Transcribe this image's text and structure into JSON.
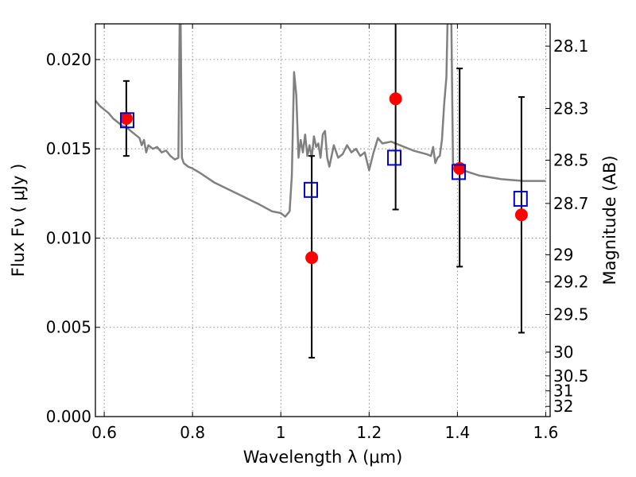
{
  "chart_data": {
    "type": "scatter",
    "xlabel": "Wavelength  λ (μm)",
    "ylabel": "Flux  Fν  ( μJy )",
    "y2label": "Magnitude (AB)",
    "xlim": [
      0.58,
      1.61
    ],
    "ylim": [
      0.0,
      0.022
    ],
    "grid": true,
    "x_ticks": [
      0.6,
      0.8,
      1.0,
      1.2,
      1.4,
      1.6
    ],
    "x_tick_labels": [
      "0.6",
      "0.8",
      "1",
      "1.2",
      "1.4",
      "1.6"
    ],
    "y_ticks": [
      0.0,
      0.005,
      0.01,
      0.015,
      0.02
    ],
    "y_tick_labels": [
      "0.000",
      "0.005",
      "0.010",
      "0.015",
      "0.020"
    ],
    "mag_ticks": [
      {
        "label": "28.1",
        "flux": 0.02075
      },
      {
        "label": "28.3",
        "flux": 0.01726
      },
      {
        "label": "28.5",
        "flux": 0.01436
      },
      {
        "label": "28.7",
        "flux": 0.01194
      },
      {
        "label": "29",
        "flux": 0.00906
      },
      {
        "label": "29.2",
        "flux": 0.00754
      },
      {
        "label": "29.5",
        "flux": 0.00572
      },
      {
        "label": "30",
        "flux": 0.00361
      },
      {
        "label": "30.5",
        "flux": 0.00228
      },
      {
        "label": "31",
        "flux": 0.00144
      },
      {
        "label": "32",
        "flux": 0.00057
      }
    ],
    "series": [
      {
        "type": "line",
        "color": "#808080",
        "x": [
          0.58,
          0.59,
          0.6,
          0.61,
          0.62,
          0.63,
          0.64,
          0.65,
          0.66,
          0.67,
          0.68,
          0.685,
          0.69,
          0.695,
          0.7,
          0.71,
          0.72,
          0.73,
          0.74,
          0.75,
          0.76,
          0.768,
          0.772,
          0.776,
          0.78,
          0.79,
          0.8,
          0.82,
          0.85,
          0.9,
          0.95,
          0.98,
          1.0,
          1.01,
          1.02,
          1.025,
          1.03,
          1.035,
          1.04,
          1.045,
          1.05,
          1.055,
          1.06,
          1.065,
          1.07,
          1.075,
          1.08,
          1.085,
          1.09,
          1.095,
          1.1,
          1.105,
          1.11,
          1.12,
          1.13,
          1.14,
          1.15,
          1.16,
          1.17,
          1.18,
          1.19,
          1.2,
          1.21,
          1.22,
          1.23,
          1.25,
          1.27,
          1.3,
          1.33,
          1.34,
          1.345,
          1.35,
          1.355,
          1.36,
          1.365,
          1.37,
          1.375,
          1.38,
          1.385,
          1.39,
          1.4,
          1.45,
          1.5,
          1.55,
          1.6
        ],
        "y": [
          0.0177,
          0.0174,
          0.0172,
          0.017,
          0.0167,
          0.0165,
          0.0163,
          0.0162,
          0.016,
          0.0158,
          0.0156,
          0.0152,
          0.0155,
          0.0148,
          0.0152,
          0.015,
          0.0151,
          0.0148,
          0.0149,
          0.0146,
          0.0144,
          0.0145,
          0.025,
          0.0145,
          0.0142,
          0.014,
          0.0139,
          0.0136,
          0.0131,
          0.0125,
          0.0119,
          0.0115,
          0.0114,
          0.0112,
          0.0115,
          0.0135,
          0.0193,
          0.018,
          0.0145,
          0.0155,
          0.0148,
          0.0158,
          0.0146,
          0.0152,
          0.0145,
          0.0157,
          0.0151,
          0.0153,
          0.0145,
          0.0158,
          0.016,
          0.0145,
          0.014,
          0.0152,
          0.0145,
          0.0147,
          0.0152,
          0.0148,
          0.015,
          0.0146,
          0.0148,
          0.0138,
          0.0148,
          0.0156,
          0.0153,
          0.0154,
          0.0152,
          0.0149,
          0.0147,
          0.0146,
          0.0151,
          0.0142,
          0.0145,
          0.0146,
          0.0155,
          0.0175,
          0.019,
          0.025,
          0.025,
          0.0142,
          0.0139,
          0.0135,
          0.0133,
          0.0132,
          0.0132
        ]
      },
      {
        "type": "scatter",
        "marker": "circle",
        "color": "#ff0000",
        "x": [
          0.65,
          1.07,
          1.26,
          1.405,
          1.545
        ],
        "y": [
          0.0167,
          0.0089,
          0.0178,
          0.0139,
          0.0113
        ],
        "yerr_low": [
          0.0146,
          0.0033,
          0.0116,
          0.0084,
          0.0047
        ],
        "yerr_high": [
          0.0188,
          0.0146,
          0.0225,
          0.0195,
          0.0179
        ]
      },
      {
        "type": "scatter",
        "marker": "open-square",
        "color": "#0000cc",
        "x": [
          0.652,
          1.068,
          1.257,
          1.403,
          1.543
        ],
        "y": [
          0.0166,
          0.0127,
          0.0145,
          0.0137,
          0.0122
        ]
      }
    ]
  }
}
